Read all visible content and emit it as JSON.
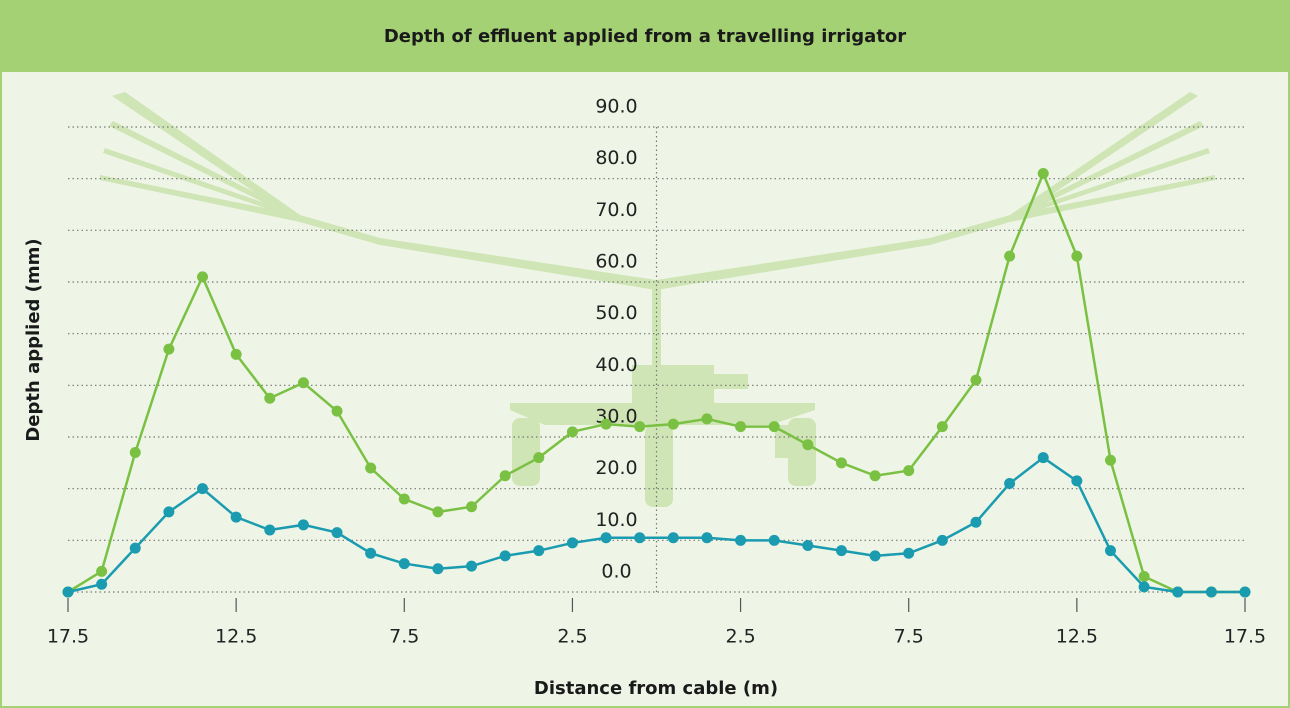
{
  "chart_data": {
    "type": "line",
    "title": "Depth of effluent applied from a travelling irrigator",
    "x_label": "Distance from cable (m)",
    "y_label": "Depth applied (mm)",
    "x": [
      -17.5,
      -16.5,
      -15.5,
      -14.5,
      -13.5,
      -12.5,
      -11.5,
      -10.5,
      -9.5,
      -8.5,
      -7.5,
      -6.5,
      -5.5,
      -4.5,
      -3.5,
      -2.5,
      -1.5,
      -0.5,
      0.5,
      1.5,
      2.5,
      3.5,
      4.5,
      5.5,
      6.5,
      7.5,
      8.5,
      9.5,
      10.5,
      11.5,
      12.5,
      13.5,
      14.5,
      15.5,
      16.5,
      17.5
    ],
    "series": [
      {
        "color": "#7ac143",
        "values": [
          0,
          4,
          27,
          47,
          61,
          46,
          37.5,
          40.5,
          35,
          24,
          18,
          15.5,
          16.5,
          22.5,
          26,
          31,
          32.5,
          32,
          32.5,
          33.5,
          32,
          32,
          28.5,
          25,
          22.5,
          23.5,
          32,
          41,
          65,
          81,
          65,
          25.5,
          3,
          0,
          0,
          0
        ]
      },
      {
        "color": "#1a9bb0",
        "values": [
          0,
          1.5,
          8.5,
          15.5,
          20,
          14.5,
          12,
          13,
          11.5,
          7.5,
          5.5,
          4.5,
          5,
          7,
          8,
          9.5,
          10.5,
          10.5,
          10.5,
          10.5,
          10,
          10,
          9,
          8,
          7,
          7.5,
          10,
          13.5,
          21,
          26,
          21.5,
          8,
          1,
          0,
          0,
          0
        ]
      }
    ],
    "xlim": [
      -17.5,
      17.5
    ],
    "xticks": [
      {
        "value": -17.5,
        "label": "17.5"
      },
      {
        "value": -12.5,
        "label": "12.5"
      },
      {
        "value": -7.5,
        "label": "7.5"
      },
      {
        "value": -2.5,
        "label": "2.5"
      },
      {
        "value": 2.5,
        "label": "2.5"
      },
      {
        "value": 7.5,
        "label": "7.5"
      },
      {
        "value": 12.5,
        "label": "12.5"
      },
      {
        "value": 17.5,
        "label": "17.5"
      }
    ],
    "ylim": [
      0,
      90
    ],
    "yticks": [
      {
        "value": 0,
        "label": "0.0"
      },
      {
        "value": 10,
        "label": "10.0"
      },
      {
        "value": 20,
        "label": "20.0"
      },
      {
        "value": 30,
        "label": "30.0"
      },
      {
        "value": 40,
        "label": "40.0"
      },
      {
        "value": 50,
        "label": "50.0"
      },
      {
        "value": 60,
        "label": "60.0"
      },
      {
        "value": 70,
        "label": "70.0"
      },
      {
        "value": 80,
        "label": "80.0"
      },
      {
        "value": 90,
        "label": "90.0"
      }
    ],
    "grid": true
  }
}
